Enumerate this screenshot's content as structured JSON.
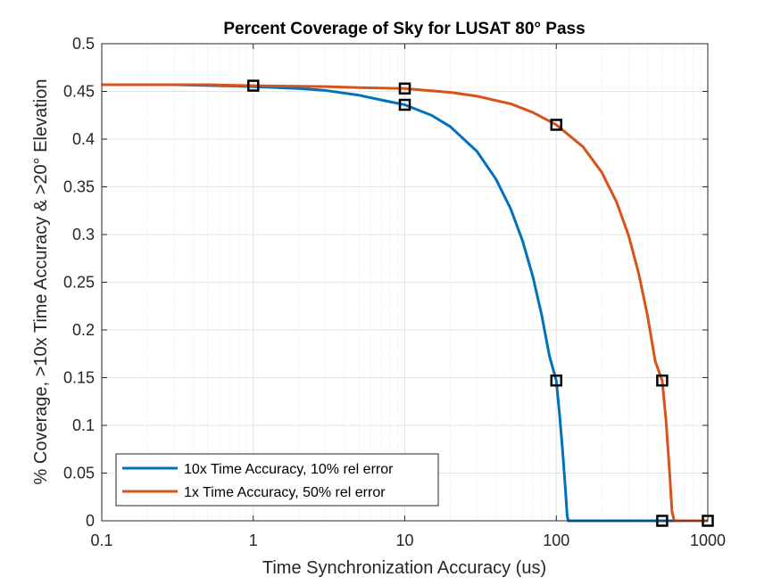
{
  "chart_data": {
    "type": "line",
    "title": "Percent Coverage of Sky for LUSAT 80° Pass",
    "xlabel": "Time Synchronization Accuracy (us)",
    "ylabel": "% Coverage, >10x Time Accuracy & >20° Elevation",
    "xscale": "log",
    "xlim": [
      0.1,
      1000
    ],
    "ylim": [
      0,
      0.5
    ],
    "xticks": [
      0.1,
      1,
      10,
      100,
      1000
    ],
    "xtick_labels": [
      "0.1",
      "1",
      "10",
      "100",
      "1000"
    ],
    "yticks": [
      0,
      0.05,
      0.1,
      0.15,
      0.2,
      0.25,
      0.3,
      0.35,
      0.4,
      0.45,
      0.5
    ],
    "ytick_labels": [
      "0",
      "0.05",
      "0.1",
      "0.15",
      "0.2",
      "0.25",
      "0.3",
      "0.35",
      "0.4",
      "0.45",
      "0.5"
    ],
    "grid": true,
    "minor_grid_x": true,
    "legend_position": "bottom-left",
    "series": [
      {
        "name": "10x Time Accuracy, 10% rel error",
        "color": "#0072BD",
        "x": [
          0.1,
          0.3,
          0.6,
          1,
          2,
          3,
          5,
          7,
          10,
          15,
          20,
          30,
          40,
          50,
          60,
          70,
          80,
          90,
          100,
          105,
          110,
          115,
          118,
          120,
          200,
          500,
          1000
        ],
        "y": [
          0.457,
          0.457,
          0.456,
          0.455,
          0.453,
          0.451,
          0.446,
          0.441,
          0.436,
          0.425,
          0.413,
          0.387,
          0.358,
          0.327,
          0.293,
          0.256,
          0.216,
          0.173,
          0.147,
          0.112,
          0.074,
          0.032,
          0.005,
          0,
          0,
          0,
          0
        ]
      },
      {
        "name": "1x Time Accuracy, 50% rel error",
        "color": "#D95319",
        "x": [
          0.1,
          0.5,
          1,
          3,
          5,
          10,
          20,
          30,
          50,
          70,
          100,
          150,
          200,
          250,
          300,
          350,
          400,
          450,
          500,
          530,
          560,
          580,
          600,
          700,
          1000
        ],
        "y": [
          0.457,
          0.457,
          0.456,
          0.455,
          0.454,
          0.453,
          0.449,
          0.445,
          0.437,
          0.428,
          0.415,
          0.392,
          0.365,
          0.334,
          0.299,
          0.259,
          0.215,
          0.167,
          0.147,
          0.105,
          0.05,
          0.01,
          0,
          0,
          0
        ]
      }
    ],
    "markers": [
      {
        "x": 1,
        "y": 0.456
      },
      {
        "x": 10,
        "y": 0.436
      },
      {
        "x": 10,
        "y": 0.453
      },
      {
        "x": 100,
        "y": 0.415
      },
      {
        "x": 100,
        "y": 0.147
      },
      {
        "x": 500,
        "y": 0.147
      },
      {
        "x": 500,
        "y": 0
      },
      {
        "x": 1000,
        "y": 0
      }
    ]
  }
}
